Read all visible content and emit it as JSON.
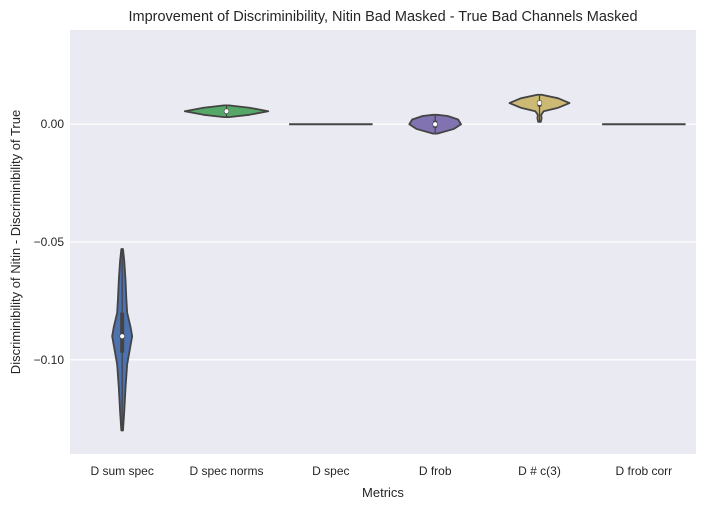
{
  "chart_data": {
    "type": "violin",
    "title": "Improvement of Discriminibility, Nitin Bad Masked - True Bad Channels Masked",
    "xlabel": "Metrics",
    "ylabel": "Discriminibility of Nitin - Discriminibility of True",
    "ylim": [
      -0.14,
      0.04
    ],
    "yticks": [
      0.0,
      -0.05,
      -0.1
    ],
    "ytick_labels": [
      "0.00",
      "−0.05",
      "−0.10"
    ],
    "grid": true,
    "style": "seaborn-darkgrid",
    "categories": [
      "D sum spec",
      "D spec norms",
      "D spec",
      "D frob",
      "D # c(3)",
      "D frob corr"
    ],
    "violins": [
      {
        "category": "D sum spec",
        "color": "#4c72b0",
        "min": -0.13,
        "max": -0.053,
        "q1": -0.097,
        "median": -0.09,
        "q3": -0.08,
        "profile": [
          [
            -0.13,
            0.02
          ],
          [
            -0.122,
            0.05
          ],
          [
            -0.112,
            0.08
          ],
          [
            -0.102,
            0.12
          ],
          [
            -0.094,
            0.2
          ],
          [
            -0.09,
            0.24
          ],
          [
            -0.086,
            0.2
          ],
          [
            -0.08,
            0.12
          ],
          [
            -0.074,
            0.1
          ],
          [
            -0.066,
            0.08
          ],
          [
            -0.058,
            0.05
          ],
          [
            -0.053,
            0.02
          ]
        ]
      },
      {
        "category": "D spec norms",
        "color": "#55a868",
        "min": 0.003,
        "max": 0.008,
        "q1": 0.0045,
        "median": 0.0055,
        "q3": 0.0065,
        "profile": [
          [
            0.003,
            0.06
          ],
          [
            0.004,
            0.55
          ],
          [
            0.0055,
            1.0
          ],
          [
            0.007,
            0.55
          ],
          [
            0.008,
            0.06
          ]
        ]
      },
      {
        "category": "D spec",
        "color": "#c44e52",
        "min": 0.0,
        "max": 0.0,
        "q1": 0.0,
        "median": 0.0,
        "q3": 0.0,
        "profile": [
          [
            0.0,
            1.0
          ]
        ]
      },
      {
        "category": "D frob",
        "color": "#8172b2",
        "min": -0.004,
        "max": 0.004,
        "q1": -0.0015,
        "median": 0.0,
        "q3": 0.0015,
        "profile": [
          [
            -0.004,
            0.05
          ],
          [
            -0.002,
            0.45
          ],
          [
            0.0,
            0.62
          ],
          [
            0.002,
            0.55
          ],
          [
            0.0035,
            0.3
          ],
          [
            0.004,
            0.05
          ]
        ]
      },
      {
        "category": "D # c(3)",
        "color": "#ccb974",
        "min": 0.001,
        "max": 0.0125,
        "q1": 0.0075,
        "median": 0.009,
        "q3": 0.01,
        "profile": [
          [
            0.001,
            0.03
          ],
          [
            0.0025,
            0.05
          ],
          [
            0.004,
            0.04
          ],
          [
            0.0055,
            0.1
          ],
          [
            0.007,
            0.45
          ],
          [
            0.009,
            0.72
          ],
          [
            0.011,
            0.45
          ],
          [
            0.0125,
            0.05
          ]
        ]
      },
      {
        "category": "D frob corr",
        "color": "#64b5cd",
        "min": 0.0,
        "max": 0.0,
        "q1": 0.0,
        "median": 0.0,
        "q3": 0.0,
        "profile": [
          [
            0.0,
            1.0
          ]
        ]
      }
    ]
  }
}
